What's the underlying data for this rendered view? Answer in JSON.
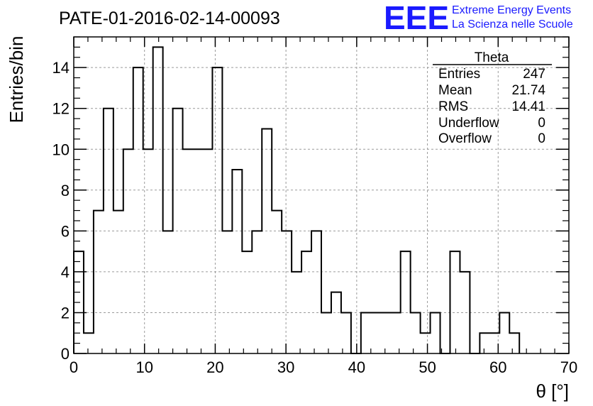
{
  "chart_data": {
    "type": "bar",
    "title": "PATE-01-2016-02-14-00093",
    "xlabel": "θ [°]",
    "ylabel": "Entries/bin",
    "xlim": [
      0,
      70
    ],
    "ylim": [
      0,
      15.5
    ],
    "x_ticks": [
      "0",
      "10",
      "20",
      "30",
      "40",
      "50",
      "60",
      "70"
    ],
    "y_ticks": [
      "0",
      "2",
      "4",
      "6",
      "8",
      "10",
      "12",
      "14"
    ],
    "grid": true,
    "bin_width": 1.4,
    "values": [
      5,
      1,
      7,
      12,
      7,
      10,
      14,
      10,
      15,
      6,
      12,
      10,
      10,
      10,
      14,
      6,
      9,
      5,
      6,
      11,
      7,
      6,
      4,
      5,
      6,
      2,
      3,
      2,
      0,
      2,
      2,
      2,
      2,
      5,
      2,
      1,
      2,
      0,
      5,
      4,
      0,
      1,
      1,
      2,
      1
    ],
    "histogram_style": "step",
    "stats_box": {
      "title": "Theta",
      "rows": [
        {
          "label": "Entries",
          "value": "247"
        },
        {
          "label": "Mean",
          "value": "21.74"
        },
        {
          "label": "RMS",
          "value": "14.41"
        },
        {
          "label": "Underflow",
          "value": "0"
        },
        {
          "label": "Overflow",
          "value": "0"
        }
      ]
    }
  },
  "logo": {
    "mark": "EEE",
    "line1": "Extreme Energy Events",
    "line2": "La Scienza nelle Scuole",
    "color": "#1a1aff"
  },
  "colors": {
    "histogram": "#000000",
    "grid": "#9a9a9a"
  }
}
